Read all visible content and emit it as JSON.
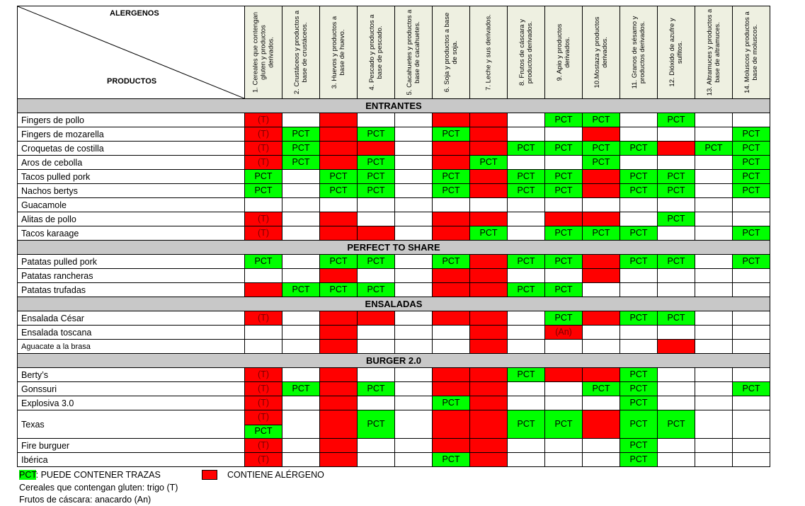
{
  "header": {
    "corner_top": "ALERGENOS",
    "corner_bottom": "PRODUCTOS",
    "allergens": [
      "1. Cereales que contengan gluten y productos derivados.",
      "2. Crustáceos y productos a base de crustáceos.",
      "3. Huevos y productos a base de huevo.",
      "4. Pescado y productos a base de pescado.",
      "5. Cacahuetes y productos a base de cacahuetes.",
      "6. Soja y productos a base de soja.",
      "7. Leche y sus derivados.",
      "8. Frutos de cáscara y productos derivados.",
      "9. Apio y productos derivados.",
      "10.Mostaza y productos derivados.",
      "11. Granos de sésamo y productos derivados.",
      "12. Dióxido de azufre y sulfitos.",
      "13. Altramuces y productos a base de altramuces.",
      "14. Moluscos y productos a base de moluscos."
    ]
  },
  "colors": {
    "contains": "#ff0000",
    "traces": "#00ff00",
    "section": "#c8c8c8",
    "header": "#eef0e1"
  },
  "cell_codes": {
    "R": "contiene alérgeno",
    "P": "PCT",
    "T": "(T) sobre rojo",
    "A": "(An) sobre rojo",
    "TP": "(T) rojo / PCT verde"
  },
  "sections": [
    {
      "title": "ENTRANTES",
      "rows": [
        {
          "name": "Fingers de pollo",
          "cells": [
            "T",
            "",
            "R",
            "",
            "",
            "R",
            "R",
            "",
            "P",
            "P",
            "",
            "P",
            "",
            ""
          ]
        },
        {
          "name": "Fingers de mozarella",
          "cells": [
            "T",
            "P",
            "R",
            "P",
            "",
            "P",
            "R",
            "",
            "",
            "R",
            "",
            "",
            "",
            "P"
          ]
        },
        {
          "name": "Croquetas de costilla",
          "cells": [
            "T",
            "P",
            "R",
            "R",
            "",
            "R",
            "R",
            "P",
            "P",
            "P",
            "P",
            "R",
            "P",
            "P"
          ]
        },
        {
          "name": "Aros de cebolla",
          "cells": [
            "T",
            "P",
            "R",
            "P",
            "",
            "R",
            "P",
            "",
            "",
            "P",
            "",
            "",
            "",
            "P"
          ]
        },
        {
          "name": "Tacos pulled pork",
          "cells": [
            "P",
            "",
            "P",
            "P",
            "",
            "P",
            "R",
            "P",
            "P",
            "R",
            "P",
            "P",
            "",
            "P"
          ]
        },
        {
          "name": "Nachos bertys",
          "cells": [
            "P",
            "",
            "P",
            "P",
            "",
            "P",
            "R",
            "P",
            "P",
            "R",
            "P",
            "P",
            "",
            "P"
          ]
        },
        {
          "name": "Guacamole",
          "cells": [
            "",
            "",
            "",
            "",
            "",
            "",
            "",
            "",
            "",
            "",
            "",
            "",
            "",
            ""
          ]
        },
        {
          "name": "Alitas de pollo",
          "cells": [
            "T",
            "",
            "R",
            "",
            "",
            "R",
            "R",
            "",
            "R",
            "R",
            "",
            "P",
            "",
            ""
          ]
        },
        {
          "name": "Tacos karaage",
          "cells": [
            "T",
            "",
            "R",
            "R",
            "",
            "R",
            "P",
            "",
            "P",
            "P",
            "P",
            "",
            "",
            "P"
          ]
        }
      ]
    },
    {
      "title": "PERFECT TO SHARE",
      "rows": [
        {
          "name": "Patatas pulled pork",
          "cells": [
            "P",
            "",
            "P",
            "P",
            "",
            "P",
            "R",
            "P",
            "P",
            "R",
            "P",
            "P",
            "",
            "P"
          ]
        },
        {
          "name": "Patatas rancheras",
          "cells": [
            "",
            "",
            "R",
            "",
            "",
            "R",
            "R",
            "",
            "",
            "R",
            "",
            "",
            "",
            ""
          ]
        },
        {
          "name": "Patatas trufadas",
          "cells": [
            "R",
            "P",
            "P",
            "P",
            "",
            "R",
            "R",
            "P",
            "P",
            "",
            "",
            "",
            "",
            ""
          ]
        }
      ]
    },
    {
      "title": "ENSALADAS",
      "rows": [
        {
          "name": "Ensalada César",
          "cells": [
            "T",
            "",
            "R",
            "R",
            "",
            "R",
            "R",
            "",
            "P",
            "R",
            "P",
            "P",
            "",
            ""
          ]
        },
        {
          "name": "Ensalada toscana",
          "cells": [
            "",
            "",
            "R",
            "",
            "",
            "",
            "R",
            "",
            "A",
            "",
            "",
            "",
            "",
            ""
          ]
        },
        {
          "name": "Aguacate a la brasa",
          "cells": [
            "",
            "",
            "R",
            "",
            "",
            "",
            "R",
            "",
            "",
            "",
            "",
            "R",
            "",
            ""
          ],
          "small": true
        }
      ]
    },
    {
      "title": "BURGER 2.0",
      "rows": [
        {
          "name": "Berty’s",
          "cells": [
            "T",
            "",
            "R",
            "",
            "",
            "R",
            "R",
            "P",
            "R",
            "R",
            "P",
            "",
            "",
            ""
          ]
        },
        {
          "name": "Gonssuri",
          "cells": [
            "T",
            "P",
            "R",
            "P",
            "",
            "R",
            "R",
            "",
            "",
            "P",
            "P",
            "",
            "",
            "P"
          ]
        },
        {
          "name": "Explosiva 3.0",
          "cells": [
            "T",
            "",
            "R",
            "",
            "",
            "P",
            "R",
            "",
            "",
            "",
            "P",
            "",
            "",
            ""
          ]
        },
        {
          "name": "Texas",
          "cells": [
            "TP",
            "",
            "R",
            "P",
            "",
            "R",
            "R",
            "P",
            "P",
            "R",
            "P",
            "P",
            "",
            ""
          ],
          "tall": true
        },
        {
          "name": "Fire burguer",
          "cells": [
            "T",
            "",
            "R",
            "",
            "",
            "R",
            "R",
            "",
            "",
            "",
            "P",
            "",
            "",
            ""
          ]
        },
        {
          "name": "Ibérica",
          "cells": [
            "T",
            "",
            "R",
            "",
            "",
            "P",
            "R",
            "",
            "",
            "",
            "P",
            "",
            "",
            ""
          ]
        }
      ]
    }
  ],
  "labels": {
    "pct": "PCT",
    "t": "(T)",
    "an": "(An)"
  },
  "legend": {
    "pct_code": "PCT",
    "pct_text": ": PUEDE CONTENER TRAZAS",
    "contains_text": "CONTIENE ALÉRGENO",
    "note_gluten": "Cereales que contengan gluten: trigo (T)",
    "note_nuts": "Frutos de cáscara: anacardo (An)"
  }
}
